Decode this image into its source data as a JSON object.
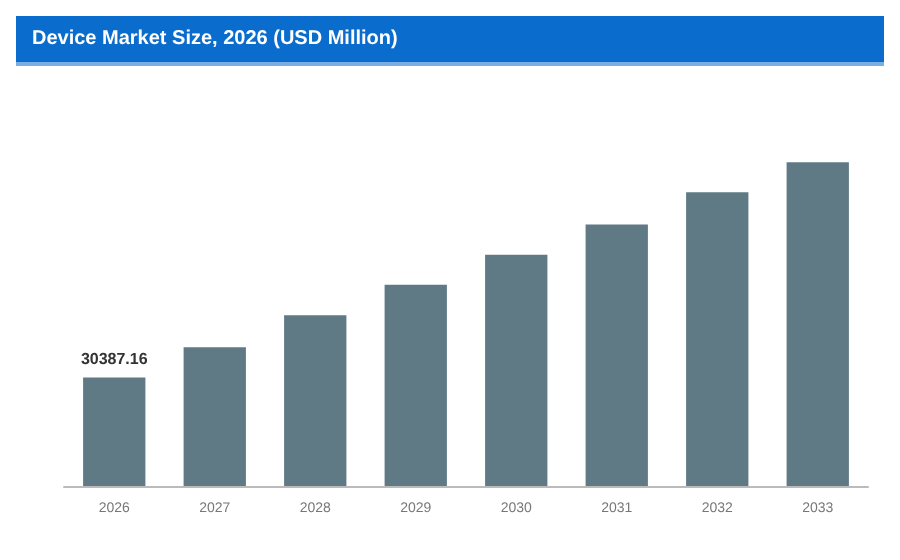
{
  "chart_data": {
    "type": "bar",
    "title": "Device Market Size, 2026 (USD Million)",
    "categories": [
      "2026",
      "2027",
      "2028",
      "2029",
      "2030",
      "2031",
      "2032",
      "2033"
    ],
    "values": [
      30387.16,
      38800,
      47800,
      56300,
      64700,
      73200,
      82200,
      90600
    ],
    "value_labels": [
      "30387.16",
      null,
      null,
      null,
      null,
      null,
      null,
      null
    ],
    "color": "#5f7a85",
    "tick_labels": "x"
  }
}
